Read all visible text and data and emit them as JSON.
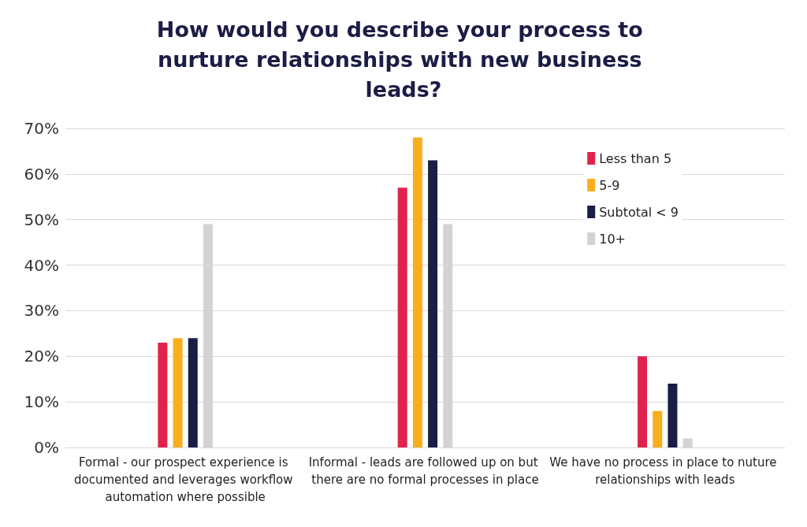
{
  "chart_data": {
    "type": "bar",
    "title": "How would you describe your process to nurture relationships with new business leads?",
    "categories": [
      "Formal - our prospect experience is documented and leverages workflow automation where possible",
      "Informal - leads are followed up on but there are no formal processes in place",
      "We have no process in place to nuture relationships with leads"
    ],
    "series": [
      {
        "name": "Less than 5",
        "color": "#e0234e",
        "values": [
          23,
          57,
          20
        ]
      },
      {
        "name": "5-9",
        "color": "#f9ae1c",
        "values": [
          24,
          68,
          8
        ]
      },
      {
        "name": "Subtotal < 9",
        "color": "#1b1d45",
        "values": [
          24,
          63,
          14
        ]
      },
      {
        "name": "10+",
        "color": "#d3d3d3",
        "values": [
          49,
          49,
          2
        ]
      }
    ],
    "ylim": [
      0,
      70
    ],
    "yticks": [
      {
        "value": 0,
        "label": "0%"
      },
      {
        "value": 10,
        "label": "10%"
      },
      {
        "value": 20,
        "label": "20%"
      },
      {
        "value": 30,
        "label": "30%"
      },
      {
        "value": 40,
        "label": "40%"
      },
      {
        "value": 50,
        "label": "50%"
      },
      {
        "value": 60,
        "label": "60%"
      },
      {
        "value": 70,
        "label": "70%"
      }
    ],
    "grid": "y",
    "legend": "top right"
  }
}
